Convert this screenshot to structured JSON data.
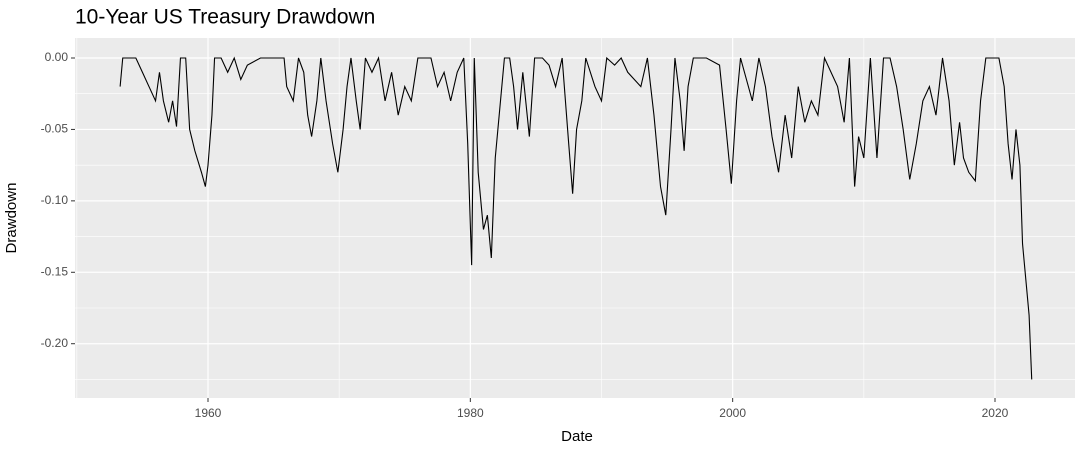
{
  "chart_data": {
    "type": "line",
    "title": "10-Year US Treasury Drawdown",
    "x_label": "Date",
    "y_label": "Drawdown",
    "xlim": [
      1949.86,
      2026.1
    ],
    "xticks": [
      1960,
      1980,
      2000,
      2020
    ],
    "ylim": [
      -0.238,
      0.014
    ],
    "yticks": [
      {
        "value": 0,
        "label": "0.00"
      },
      {
        "value": -0.05,
        "label": "-0.05"
      },
      {
        "value": -0.1,
        "label": "-0.10"
      },
      {
        "value": -0.15,
        "label": "-0.15"
      },
      {
        "value": -0.2,
        "label": "-0.20"
      }
    ],
    "grid": true,
    "series": [
      {
        "color": "#000000",
        "x": [
          1953.3,
          1953.5,
          1954.5,
          1955,
          1955.5,
          1956,
          1956.3,
          1956.6,
          1957,
          1957.3,
          1957.6,
          1957.9,
          1958.3,
          1958.6,
          1959,
          1959.5,
          1959.8,
          1960,
          1960.3,
          1960.5,
          1961,
          1961.5,
          1962,
          1962.5,
          1963,
          1964,
          1965,
          1965.8,
          1966,
          1966.5,
          1966.9,
          1967.3,
          1967.6,
          1967.9,
          1968.3,
          1968.6,
          1969,
          1969.5,
          1969.9,
          1970.3,
          1970.6,
          1970.9,
          1971.3,
          1971.6,
          1972,
          1972.5,
          1973,
          1973.5,
          1974,
          1974.5,
          1975,
          1975.5,
          1976,
          1977,
          1977.5,
          1978,
          1978.5,
          1979,
          1979.5,
          1979.8,
          1980.1,
          1980.3,
          1980.6,
          1981,
          1981.3,
          1981.6,
          1981.9,
          1982.3,
          1982.6,
          1983,
          1983.3,
          1983.6,
          1984,
          1984.5,
          1984.9,
          1985.5,
          1986,
          1986.5,
          1987,
          1987.5,
          1987.8,
          1988.1,
          1988.5,
          1988.8,
          1989.5,
          1990,
          1990.4,
          1991,
          1991.5,
          1992,
          1993,
          1993.5,
          1994,
          1994.5,
          1994.9,
          1995.3,
          1995.6,
          1996,
          1996.3,
          1996.6,
          1997,
          1998,
          1999,
          1999.5,
          1999.9,
          2000.3,
          2000.6,
          2001.5,
          2002,
          2002.5,
          2003,
          2003.5,
          2004,
          2004.5,
          2005,
          2005.5,
          2006,
          2006.5,
          2007,
          2008,
          2008.5,
          2008.9,
          2009.3,
          2009.6,
          2010,
          2010.5,
          2011,
          2011.5,
          2012,
          2012.5,
          2013,
          2013.5,
          2014,
          2014.5,
          2015,
          2015.5,
          2016,
          2016.5,
          2016.9,
          2017.3,
          2017.6,
          2018,
          2018.5,
          2018.9,
          2019.3,
          2019.8,
          2020.3,
          2020.7,
          2021,
          2021.3,
          2021.6,
          2021.9,
          2022.1,
          2022.4,
          2022.6,
          2022.8
        ],
        "values": [
          -0.02,
          0,
          0,
          -0.01,
          -0.02,
          -0.03,
          -0.01,
          -0.03,
          -0.045,
          -0.03,
          -0.048,
          0,
          0,
          -0.05,
          -0.065,
          -0.08,
          -0.09,
          -0.075,
          -0.04,
          0,
          0,
          -0.01,
          0,
          -0.015,
          -0.005,
          0,
          0,
          0,
          -0.02,
          -0.03,
          0,
          -0.01,
          -0.04,
          -0.055,
          -0.03,
          0,
          -0.03,
          -0.06,
          -0.08,
          -0.05,
          -0.02,
          0,
          -0.03,
          -0.05,
          0,
          -0.01,
          0,
          -0.03,
          -0.01,
          -0.04,
          -0.02,
          -0.03,
          0,
          0,
          -0.02,
          -0.01,
          -0.03,
          -0.01,
          0,
          -0.06,
          -0.145,
          0,
          -0.08,
          -0.12,
          -0.11,
          -0.14,
          -0.07,
          -0.03,
          0,
          0,
          -0.02,
          -0.05,
          -0.01,
          -0.055,
          0,
          0,
          -0.005,
          -0.02,
          0,
          -0.06,
          -0.095,
          -0.05,
          -0.03,
          0,
          -0.02,
          -0.03,
          0,
          -0.005,
          0,
          -0.01,
          -0.02,
          0,
          -0.04,
          -0.09,
          -0.11,
          -0.05,
          0,
          -0.03,
          -0.065,
          -0.02,
          0,
          0,
          -0.005,
          -0.05,
          -0.088,
          -0.03,
          0,
          -0.03,
          0,
          -0.02,
          -0.055,
          -0.08,
          -0.04,
          -0.07,
          -0.02,
          -0.045,
          -0.03,
          -0.04,
          0,
          -0.02,
          -0.045,
          0,
          -0.09,
          -0.055,
          -0.07,
          0,
          -0.07,
          0,
          0,
          -0.02,
          -0.05,
          -0.085,
          -0.06,
          -0.03,
          -0.02,
          -0.04,
          0,
          -0.03,
          -0.075,
          -0.045,
          -0.07,
          -0.08,
          -0.086,
          -0.03,
          0,
          0,
          0,
          -0.02,
          -0.06,
          -0.085,
          -0.05,
          -0.075,
          -0.13,
          -0.16,
          -0.18,
          -0.225
        ]
      }
    ]
  }
}
